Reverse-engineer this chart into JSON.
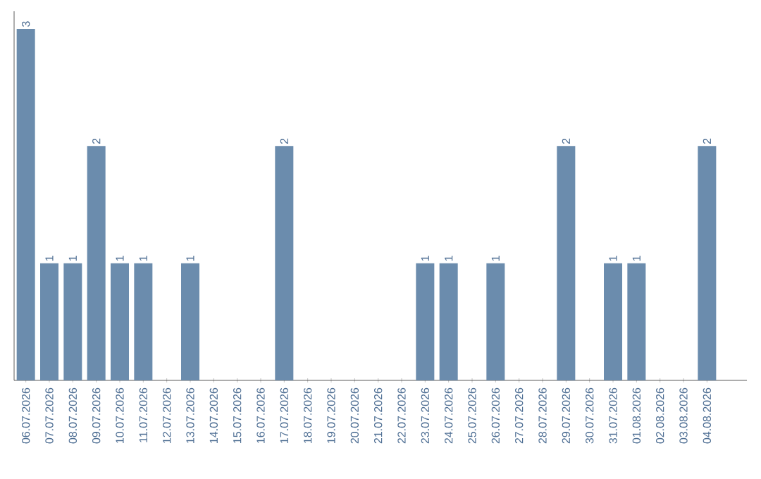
{
  "chart_data": {
    "type": "bar",
    "color": "#6b8cad",
    "categories": [
      "06.07.2026",
      "07.07.2026",
      "08.07.2026",
      "09.07.2026",
      "10.07.2026",
      "11.07.2026",
      "12.07.2026",
      "13.07.2026",
      "14.07.2026",
      "15.07.2026",
      "16.07.2026",
      "17.07.2026",
      "18.07.2026",
      "19.07.2026",
      "20.07.2026",
      "21.07.2026",
      "22.07.2026",
      "23.07.2026",
      "24.07.2026",
      "25.07.2026",
      "26.07.2026",
      "27.07.2026",
      "28.07.2026",
      "29.07.2026",
      "30.07.2026",
      "31.07.2026",
      "01.08.2026",
      "02.08.2026",
      "03.08.2026",
      "04.08.2026"
    ],
    "values": [
      3,
      1,
      1,
      2,
      1,
      1,
      0,
      1,
      0,
      0,
      0,
      2,
      0,
      0,
      0,
      0,
      0,
      1,
      1,
      0,
      1,
      0,
      0,
      2,
      0,
      1,
      1,
      0,
      0,
      2
    ],
    "value_labels": [
      "3",
      "1",
      "1",
      "2",
      "1",
      "1",
      null,
      "1",
      null,
      null,
      null,
      "2",
      null,
      null,
      null,
      null,
      null,
      "1",
      "1",
      null,
      "1",
      null,
      null,
      "2",
      null,
      "1",
      "1",
      null,
      null,
      "2"
    ],
    "grid": false
  }
}
